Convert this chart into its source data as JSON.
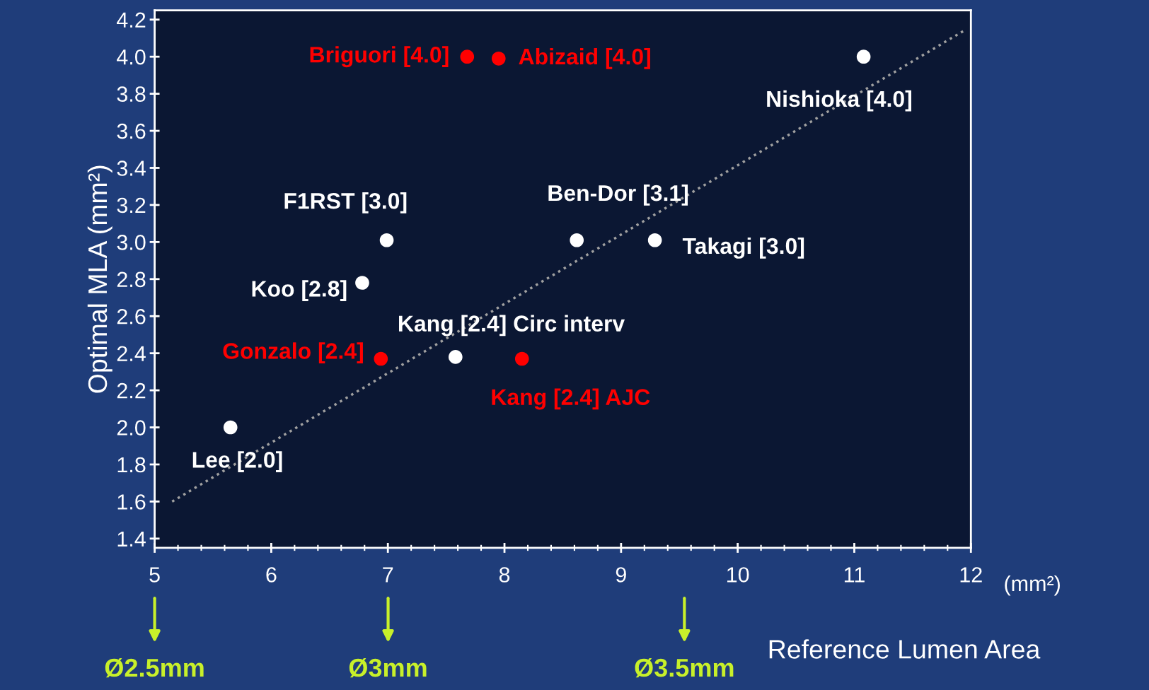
{
  "chart_data": {
    "type": "scatter",
    "xlabel": "Reference Lumen Area",
    "ylabel": "Optimal MLA (mm²)",
    "xlim": [
      5,
      12
    ],
    "xticks": [
      5,
      6,
      7,
      8,
      9,
      10,
      11,
      12
    ],
    "ylim": [
      1.35,
      4.25
    ],
    "yticks": [
      {
        "value": 1.4,
        "label": "1.4"
      },
      {
        "value": 1.6,
        "label": "1.6"
      },
      {
        "value": 1.8,
        "label": "1.8"
      },
      {
        "value": 2.0,
        "label": "2.0"
      },
      {
        "value": 2.2,
        "label": "2.2"
      },
      {
        "value": 2.4,
        "label": "2.4"
      },
      {
        "value": 2.6,
        "label": "2.6"
      },
      {
        "value": 2.8,
        "label": "2.8"
      },
      {
        "value": 3.0,
        "label": "3.0"
      },
      {
        "value": 3.2,
        "label": "3.2"
      },
      {
        "value": 3.4,
        "label": "3.4"
      },
      {
        "value": 3.6,
        "label": "3.6"
      },
      {
        "value": 3.8,
        "label": "3.8"
      },
      {
        "value": 4.0,
        "label": "4.0"
      },
      {
        "value": 4.2,
        "label": "4.2"
      }
    ],
    "grid": false,
    "marker": "circle",
    "series": [
      {
        "color": "#ffffff",
        "x": [
          11.08,
          6.99,
          8.62,
          9.29,
          6.78,
          7.58,
          5.65
        ],
        "values": [
          4.0,
          3.01,
          3.01,
          3.01,
          2.78,
          2.38,
          2.0
        ]
      },
      {
        "color": "#ff0000",
        "x": [
          7.68,
          7.95,
          6.94,
          8.15
        ],
        "values": [
          4.0,
          3.99,
          2.37,
          2.37
        ]
      },
      {
        "type": "line",
        "color": "#a0a0a0",
        "line_style": "dotted",
        "marker": "none",
        "x": [
          5.15,
          11.94
        ],
        "values": [
          1.6,
          4.14
        ]
      }
    ],
    "annotations": [
      "Ø2.5mm",
      "Ø3mm",
      "Ø3.5mm",
      {
        "text": "Briguori [4.0]",
        "x": 7.68,
        "y": 4.0
      },
      {
        "text": "Abizaid [4.0]",
        "x": 7.95,
        "y": 3.99
      },
      {
        "text": "Nishioka [4.0]",
        "x": 11.08,
        "y": 4.0
      },
      {
        "text": "F1RST [3.0]",
        "x": 6.99,
        "y": 3.01
      },
      {
        "text": "Ben-Dor [3.1]",
        "x": 8.62,
        "y": 3.01
      },
      {
        "text": "Takagi [3.0]",
        "x": 9.29,
        "y": 3.01
      },
      {
        "text": "Koo [2.8]",
        "x": 6.78,
        "y": 2.78
      },
      {
        "text": "Gonzalo [2.4]",
        "x": 6.94,
        "y": 2.37
      },
      {
        "text": "Kang [2.4] Circ interv",
        "x": 7.58,
        "y": 2.38
      },
      {
        "text": "Kang [2.4] AJC",
        "x": 8.15,
        "y": 2.37
      },
      {
        "text": "Lee [2.0]",
        "x": 5.65,
        "y": 2.0
      },
      "(mm²)"
    ]
  }
}
